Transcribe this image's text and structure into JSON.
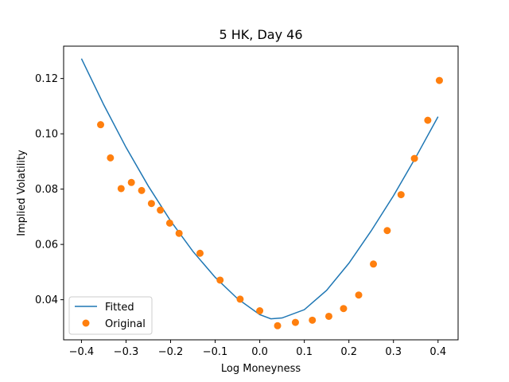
{
  "chart_data": {
    "type": "scatter",
    "title": "5 HK, Day 46",
    "xlabel": "Log Moneyness",
    "ylabel": "Implied Volatility",
    "xlim": [
      -0.44,
      0.445
    ],
    "ylim": [
      0.0255,
      0.1317
    ],
    "xticks": [
      -0.4,
      -0.3,
      -0.2,
      -0.1,
      0.0,
      0.1,
      0.2,
      0.3,
      0.4
    ],
    "xtick_labels": [
      "−0.4",
      "−0.3",
      "−0.2",
      "−0.1",
      "0.0",
      "0.1",
      "0.2",
      "0.3",
      "0.4"
    ],
    "yticks": [
      0.04,
      0.06,
      0.08,
      0.1,
      0.12
    ],
    "ytick_labels": [
      "0.04",
      "0.06",
      "0.08",
      "0.10",
      "0.12"
    ],
    "grid": false,
    "legend_position": "lower-left",
    "series": [
      {
        "name": "Fitted",
        "kind": "line",
        "color": "#1f77b4",
        "x": [
          -0.4,
          -0.35,
          -0.3,
          -0.25,
          -0.2,
          -0.15,
          -0.1,
          -0.05,
          0.0,
          0.025,
          0.05,
          0.1,
          0.15,
          0.2,
          0.25,
          0.3,
          0.35,
          0.4
        ],
        "y": [
          0.1272,
          0.1105,
          0.0951,
          0.0811,
          0.0685,
          0.0575,
          0.0481,
          0.0404,
          0.0346,
          0.0331,
          0.0334,
          0.0364,
          0.0434,
          0.0532,
          0.0649,
          0.0776,
          0.0915,
          0.1062
        ]
      },
      {
        "name": "Original",
        "kind": "scatter",
        "color": "#ff7f0e",
        "x": [
          -0.357,
          -0.335,
          -0.311,
          -0.288,
          -0.265,
          -0.243,
          -0.223,
          -0.202,
          -0.181,
          -0.134,
          -0.089,
          -0.044,
          0.0,
          0.04,
          0.08,
          0.118,
          0.155,
          0.188,
          0.222,
          0.255,
          0.286,
          0.317,
          0.347,
          0.377,
          0.403
        ],
        "y": [
          0.1033,
          0.0913,
          0.0802,
          0.0824,
          0.0795,
          0.0748,
          0.0724,
          0.0677,
          0.064,
          0.0568,
          0.0471,
          0.0402,
          0.036,
          0.0306,
          0.0318,
          0.0326,
          0.034,
          0.0368,
          0.0417,
          0.0529,
          0.065,
          0.078,
          0.0911,
          0.1049,
          0.1193
        ]
      }
    ]
  }
}
